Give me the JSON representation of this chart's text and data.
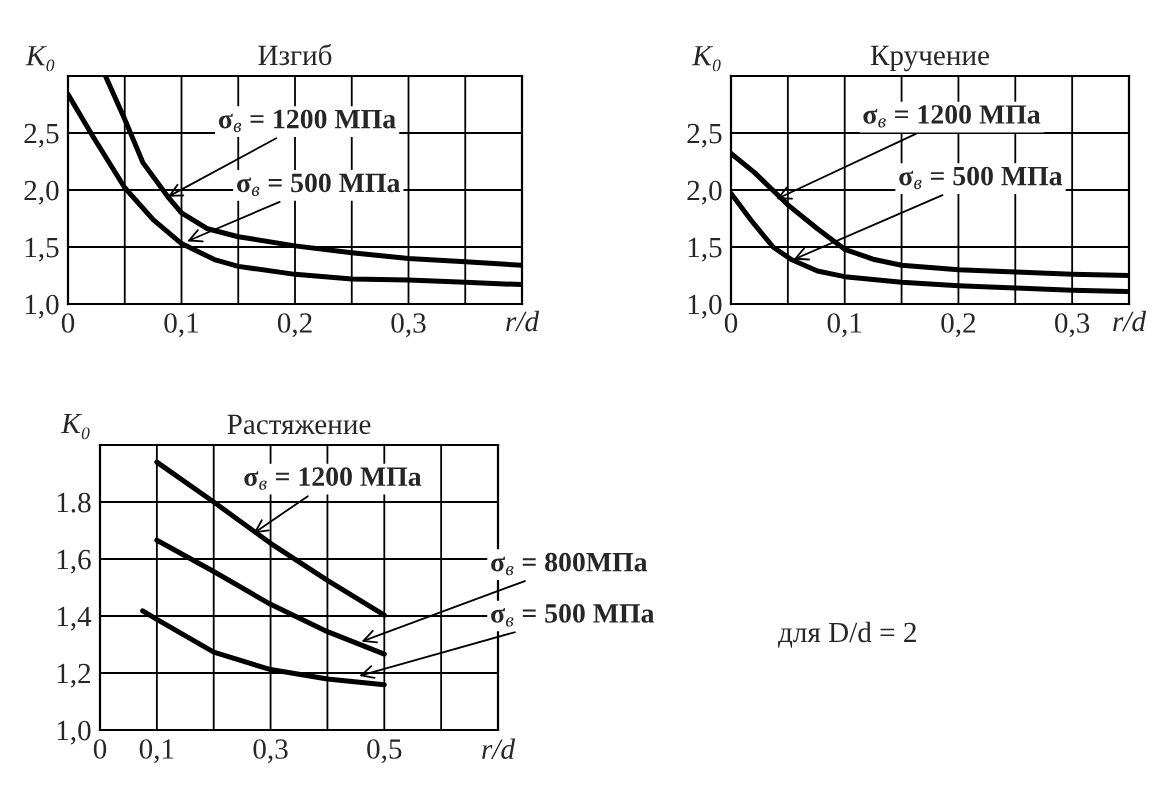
{
  "chart_data": [
    {
      "type": "line",
      "title": "Изгиб",
      "xlabel": "r/d",
      "ylabel": "K₀",
      "xlim": [
        0,
        0.4
      ],
      "ylim": [
        1.0,
        3.0
      ],
      "xticks": [
        {
          "value": 0,
          "label": "0"
        },
        {
          "value": 0.05,
          "label": null
        },
        {
          "value": 0.1,
          "label": "0,1"
        },
        {
          "value": 0.15,
          "label": null
        },
        {
          "value": 0.2,
          "label": "0,2"
        },
        {
          "value": 0.25,
          "label": null
        },
        {
          "value": 0.3,
          "label": "0,3"
        },
        {
          "value": 0.35,
          "label": null
        }
      ],
      "yticks": [
        {
          "value": 1.0,
          "label": "1,0"
        },
        {
          "value": 1.5,
          "label": "1,5"
        },
        {
          "value": 2.0,
          "label": "2,0"
        },
        {
          "value": 2.5,
          "label": "2,5"
        }
      ],
      "grid": true,
      "series": [
        {
          "color": "#000000",
          "x": [
            0.033,
            0.05,
            0.066,
            0.088,
            0.1,
            0.123,
            0.15,
            0.2,
            0.25,
            0.3,
            0.35,
            0.4
          ],
          "values": [
            3.0,
            2.62,
            2.24,
            1.94,
            1.8,
            1.66,
            1.59,
            1.51,
            1.45,
            1.4,
            1.37,
            1.34
          ]
        },
        {
          "color": "#000000",
          "x": [
            0,
            0.022,
            0.05,
            0.075,
            0.1,
            0.129,
            0.15,
            0.2,
            0.25,
            0.3,
            0.35,
            0.4
          ],
          "values": [
            2.84,
            2.47,
            2.02,
            1.74,
            1.53,
            1.39,
            1.33,
            1.26,
            1.22,
            1.21,
            1.19,
            1.17
          ]
        }
      ],
      "annotations": [
        {
          "text": "σ$_{в}$ = 1200 МПа",
          "x": 0.088,
          "y": 1.94
        },
        {
          "text": "σ$_{в}$ = 500 МПа",
          "x": 0.105,
          "y": 1.55
        }
      ]
    },
    {
      "type": "line",
      "title": "Кручение",
      "xlabel": "r/d",
      "ylabel": "K₀",
      "xlim": [
        0,
        0.35
      ],
      "ylim": [
        1.0,
        3.0
      ],
      "xticks": [
        {
          "value": 0,
          "label": "0"
        },
        {
          "value": 0.05,
          "label": null
        },
        {
          "value": 0.1,
          "label": "0,1"
        },
        {
          "value": 0.15,
          "label": null
        },
        {
          "value": 0.2,
          "label": "0,2"
        },
        {
          "value": 0.25,
          "label": null
        },
        {
          "value": 0.3,
          "label": "0,3"
        }
      ],
      "yticks": [
        {
          "value": 1.0,
          "label": "1,0"
        },
        {
          "value": 1.5,
          "label": "1,5"
        },
        {
          "value": 2.0,
          "label": "2,0"
        },
        {
          "value": 2.5,
          "label": "2,5"
        }
      ],
      "grid": true,
      "series": [
        {
          "color": "#000000",
          "x": [
            0,
            0.021,
            0.05,
            0.076,
            0.1,
            0.126,
            0.15,
            0.2,
            0.25,
            0.3,
            0.35
          ],
          "values": [
            2.32,
            2.15,
            1.87,
            1.66,
            1.48,
            1.39,
            1.34,
            1.3,
            1.28,
            1.26,
            1.25
          ]
        },
        {
          "color": "#000000",
          "x": [
            0,
            0.018,
            0.037,
            0.053,
            0.076,
            0.1,
            0.15,
            0.2,
            0.25,
            0.3,
            0.348
          ],
          "values": [
            1.97,
            1.73,
            1.5,
            1.39,
            1.29,
            1.24,
            1.19,
            1.16,
            1.14,
            1.12,
            1.11
          ]
        }
      ],
      "annotations": [
        {
          "text": "σ$_{в}$ = 1200 МПа",
          "x": 0.04,
          "y": 1.92
        },
        {
          "text": "σ$_{в}$ = 500 МПа",
          "x": 0.055,
          "y": 1.39
        }
      ]
    },
    {
      "type": "line",
      "title": "Растяжение",
      "xlabel": "r/d",
      "ylabel": "K₀",
      "xlim": [
        0,
        0.7
      ],
      "ylim": [
        1.0,
        2.0
      ],
      "xticks": [
        {
          "value": 0,
          "label": "0"
        },
        {
          "value": 0.1,
          "label": "0,1"
        },
        {
          "value": 0.2,
          "label": null
        },
        {
          "value": 0.3,
          "label": "0,3"
        },
        {
          "value": 0.4,
          "label": null
        },
        {
          "value": 0.5,
          "label": "0,5"
        },
        {
          "value": 0.6,
          "label": null
        }
      ],
      "yticks": [
        {
          "value": 1.0,
          "label": "1,0"
        },
        {
          "value": 1.2,
          "label": "1,2"
        },
        {
          "value": 1.4,
          "label": "1,4"
        },
        {
          "value": 1.6,
          "label": "1,6"
        },
        {
          "value": 1.8,
          "label": "1.8"
        }
      ],
      "grid": true,
      "series": [
        {
          "color": "#000000",
          "x": [
            0.1,
            0.2,
            0.3,
            0.4,
            0.5
          ],
          "values": [
            1.94,
            1.8,
            1.655,
            1.525,
            1.403
          ]
        },
        {
          "color": "#000000",
          "x": [
            0.1,
            0.2,
            0.3,
            0.4,
            0.5
          ],
          "values": [
            1.666,
            1.556,
            1.441,
            1.345,
            1.266
          ]
        },
        {
          "color": "#000000",
          "x": [
            0.075,
            0.1,
            0.2,
            0.3,
            0.4,
            0.5
          ],
          "values": [
            1.418,
            1.388,
            1.273,
            1.212,
            1.179,
            1.159
          ]
        }
      ],
      "annotations": [
        {
          "text": "σ$_{в}$ = 1200 МПа",
          "x": 0.27,
          "y": 1.69
        },
        {
          "text": "σ$_{в}$ = 800МПа",
          "x": 0.46,
          "y": 1.31
        },
        {
          "text": "σ$_{в}$ = 500 МПа",
          "x": 0.456,
          "y": 1.19
        }
      ]
    },
    {
      "type": "other",
      "annotations": [
        "для D/d = 2"
      ]
    }
  ]
}
